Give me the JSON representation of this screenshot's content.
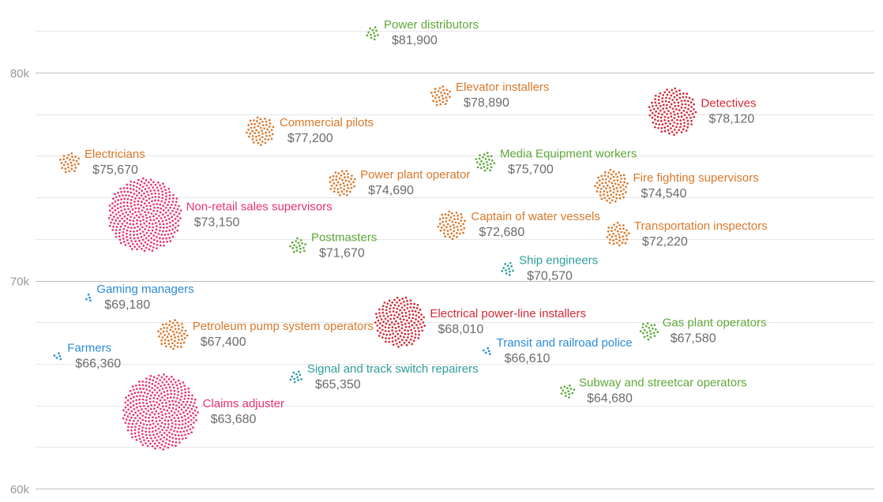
{
  "chart_data": {
    "type": "scatter",
    "title": "",
    "xlabel": "",
    "ylabel": "",
    "ylim": [
      60000,
      82500
    ],
    "major_ticks": [
      {
        "value": 60000,
        "label": "60k"
      },
      {
        "value": 70000,
        "label": "70k"
      },
      {
        "value": 80000,
        "label": "80k"
      }
    ],
    "minor_tick_step": 2000,
    "grid": true,
    "colors": {
      "orange": "#d9782b",
      "green": "#5fa83a",
      "red": "#d22a37",
      "pink": "#e8336f",
      "blue": "#2b8bd6",
      "teal": "#2e9c9c"
    },
    "points": [
      {
        "name": "Power distributors",
        "value_label": "$81,900",
        "salary": 81900,
        "color": "green",
        "x_rank": 0.438,
        "dots": 12
      },
      {
        "name": "Elevator installers",
        "value_label": "$78,890",
        "salary": 78890,
        "color": "orange",
        "x_rank": 0.53,
        "dots": 28
      },
      {
        "name": "Detectives",
        "value_label": "$78,120",
        "salary": 78120,
        "color": "red",
        "x_rank": 0.842,
        "dots": 150
      },
      {
        "name": "Commercial pilots",
        "value_label": "$77,200",
        "salary": 77200,
        "color": "orange",
        "x_rank": 0.287,
        "dots": 55
      },
      {
        "name": "Electricians",
        "value_label": "$75,670",
        "salary": 75670,
        "color": "orange",
        "x_rank": 0.03,
        "dots": 28
      },
      {
        "name": "Media Equipment workers",
        "value_label": "$75,700",
        "salary": 75700,
        "color": "green",
        "x_rank": 0.59,
        "dots": 26
      },
      {
        "name": "Power plant operator",
        "value_label": "$74,690",
        "salary": 74690,
        "color": "orange",
        "x_rank": 0.397,
        "dots": 48
      },
      {
        "name": "Fire fighting supervisors",
        "value_label": "$74,540",
        "salary": 74540,
        "color": "orange",
        "x_rank": 0.76,
        "dots": 75
      },
      {
        "name": "Non-retail sales supervisors",
        "value_label": "$73,150",
        "salary": 73150,
        "color": "pink",
        "x_rank": 0.131,
        "dots": 360
      },
      {
        "name": "Captain of water vessels",
        "value_label": "$72,680",
        "salary": 72680,
        "color": "orange",
        "x_rank": 0.545,
        "dots": 55
      },
      {
        "name": "Transportation inspectors",
        "value_label": "$72,220",
        "salary": 72220,
        "color": "orange",
        "x_rank": 0.768,
        "dots": 38
      },
      {
        "name": "Postmasters",
        "value_label": "$71,670",
        "salary": 71670,
        "color": "green",
        "x_rank": 0.338,
        "dots": 18
      },
      {
        "name": "Ship engineers",
        "value_label": "$70,570",
        "salary": 70570,
        "color": "teal",
        "x_rank": 0.62,
        "dots": 12
      },
      {
        "name": "Gaming managers",
        "value_label": "$69,180",
        "salary": 69180,
        "color": "blue",
        "x_rank": 0.055,
        "dots": 4
      },
      {
        "name": "Electrical power-line installers",
        "value_label": "$68,010",
        "salary": 68010,
        "color": "red",
        "x_rank": 0.475,
        "dots": 170
      },
      {
        "name": "Petroleum pump system operators",
        "value_label": "$67,400",
        "salary": 67400,
        "color": "orange",
        "x_rank": 0.169,
        "dots": 60
      },
      {
        "name": "Gas plant operators",
        "value_label": "$67,580",
        "salary": 67580,
        "color": "green",
        "x_rank": 0.81,
        "dots": 22
      },
      {
        "name": "Farmers",
        "value_label": "$66,360",
        "salary": 66360,
        "color": "blue",
        "x_rank": 0.015,
        "dots": 5
      },
      {
        "name": "Transit and railroad police",
        "value_label": "$66,610",
        "salary": 66610,
        "color": "blue",
        "x_rank": 0.593,
        "dots": 5
      },
      {
        "name": "Signal and track switch repairers",
        "value_label": "$65,350",
        "salary": 65350,
        "color": "teal",
        "x_rank": 0.335,
        "dots": 11
      },
      {
        "name": "Subway and streetcar operators",
        "value_label": "$64,680",
        "salary": 64680,
        "color": "green",
        "x_rank": 0.7,
        "dots": 14
      },
      {
        "name": "Claims adjuster",
        "value_label": "$63,680",
        "salary": 63680,
        "color": "pink",
        "x_rank": 0.152,
        "dots": 380
      }
    ]
  }
}
